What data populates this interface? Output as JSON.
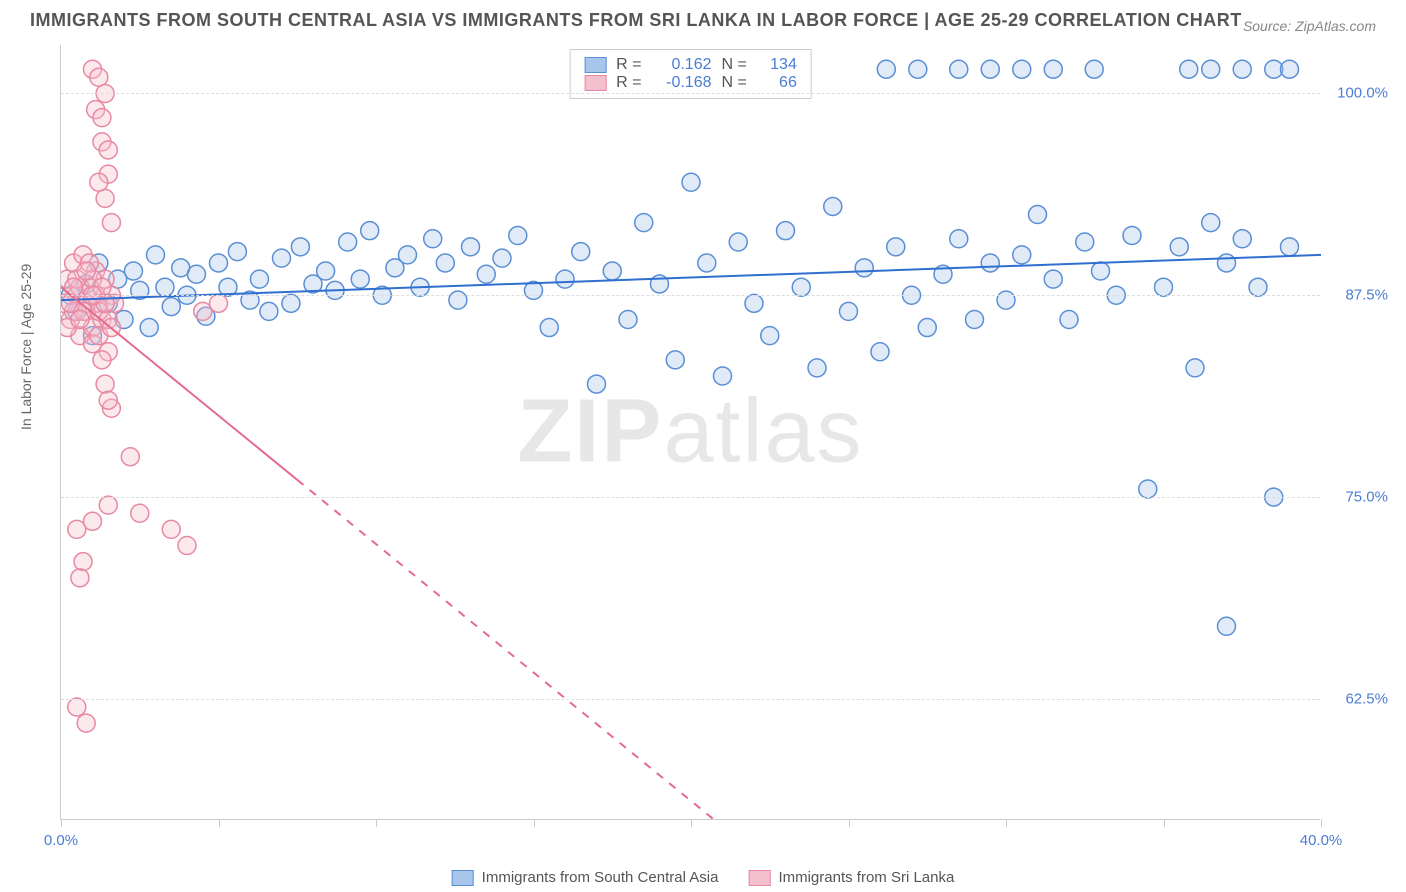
{
  "title": "IMMIGRANTS FROM SOUTH CENTRAL ASIA VS IMMIGRANTS FROM SRI LANKA IN LABOR FORCE | AGE 25-29 CORRELATION CHART",
  "source": "Source: ZipAtlas.com",
  "ylabel": "In Labor Force | Age 25-29",
  "watermark_bold": "ZIP",
  "watermark_light": "atlas",
  "chart": {
    "type": "scatter_correlation",
    "xlim": [
      0,
      40
    ],
    "ylim": [
      55,
      103
    ],
    "xtick_positions": [
      0,
      5,
      10,
      15,
      20,
      25,
      30,
      35,
      40
    ],
    "xtick_labels_shown": {
      "0": "0.0%",
      "40": "40.0%"
    },
    "ytick_positions": [
      62.5,
      75,
      87.5,
      100
    ],
    "ytick_labels": [
      "62.5%",
      "75.0%",
      "87.5%",
      "100.0%"
    ],
    "background_color": "#ffffff",
    "grid_color": "#dddddd",
    "marker_radius": 9,
    "marker_stroke_width": 1.5,
    "marker_fill_opacity": 0.35,
    "line_width": 2
  },
  "series": [
    {
      "name": "Immigrants from South Central Asia",
      "color_fill": "#a8c5ec",
      "color_stroke": "#5a8fd6",
      "line_color": "#2f6fd0",
      "r": "0.162",
      "n": "134",
      "trend_start": [
        0,
        87.2
      ],
      "trend_end": [
        40,
        90.0
      ],
      "trend_dashed_after_x": null,
      "points": [
        [
          0.3,
          87.5
        ],
        [
          0.5,
          86.5
        ],
        [
          0.8,
          88.2
        ],
        [
          1.0,
          85.0
        ],
        [
          1.2,
          89.5
        ],
        [
          1.5,
          87.0
        ],
        [
          1.8,
          88.5
        ],
        [
          2.0,
          86.0
        ],
        [
          2.3,
          89.0
        ],
        [
          2.5,
          87.8
        ],
        [
          2.8,
          85.5
        ],
        [
          3.0,
          90.0
        ],
        [
          3.3,
          88.0
        ],
        [
          3.5,
          86.8
        ],
        [
          3.8,
          89.2
        ],
        [
          4.0,
          87.5
        ],
        [
          4.3,
          88.8
        ],
        [
          4.6,
          86.2
        ],
        [
          5.0,
          89.5
        ],
        [
          5.3,
          88.0
        ],
        [
          5.6,
          90.2
        ],
        [
          6.0,
          87.2
        ],
        [
          6.3,
          88.5
        ],
        [
          6.6,
          86.5
        ],
        [
          7.0,
          89.8
        ],
        [
          7.3,
          87.0
        ],
        [
          7.6,
          90.5
        ],
        [
          8.0,
          88.2
        ],
        [
          8.4,
          89.0
        ],
        [
          8.7,
          87.8
        ],
        [
          9.1,
          90.8
        ],
        [
          9.5,
          88.5
        ],
        [
          9.8,
          91.5
        ],
        [
          10.2,
          87.5
        ],
        [
          10.6,
          89.2
        ],
        [
          11.0,
          90.0
        ],
        [
          11.4,
          88.0
        ],
        [
          11.8,
          91.0
        ],
        [
          12.2,
          89.5
        ],
        [
          12.6,
          87.2
        ],
        [
          13.0,
          90.5
        ],
        [
          13.5,
          88.8
        ],
        [
          14.0,
          89.8
        ],
        [
          14.5,
          91.2
        ],
        [
          15.0,
          87.8
        ],
        [
          15.5,
          85.5
        ],
        [
          16.0,
          88.5
        ],
        [
          16.5,
          90.2
        ],
        [
          17.0,
          82.0
        ],
        [
          17.5,
          89.0
        ],
        [
          18.0,
          86.0
        ],
        [
          18.5,
          92.0
        ],
        [
          19.0,
          88.2
        ],
        [
          19.5,
          83.5
        ],
        [
          20.0,
          94.5
        ],
        [
          20.5,
          89.5
        ],
        [
          21.0,
          82.5
        ],
        [
          21.5,
          90.8
        ],
        [
          22.0,
          87.0
        ],
        [
          22.5,
          85.0
        ],
        [
          23.0,
          91.5
        ],
        [
          23.4,
          101.5
        ],
        [
          23.5,
          88.0
        ],
        [
          24.0,
          83.0
        ],
        [
          24.5,
          93.0
        ],
        [
          25.0,
          86.5
        ],
        [
          25.5,
          89.2
        ],
        [
          26.0,
          84.0
        ],
        [
          26.2,
          101.5
        ],
        [
          26.5,
          90.5
        ],
        [
          27.0,
          87.5
        ],
        [
          27.2,
          101.5
        ],
        [
          27.5,
          85.5
        ],
        [
          28.0,
          88.8
        ],
        [
          28.5,
          101.5
        ],
        [
          28.5,
          91.0
        ],
        [
          29.0,
          86.0
        ],
        [
          29.5,
          89.5
        ],
        [
          29.5,
          101.5
        ],
        [
          30.0,
          87.2
        ],
        [
          30.5,
          90.0
        ],
        [
          30.5,
          101.5
        ],
        [
          31.0,
          92.5
        ],
        [
          31.5,
          88.5
        ],
        [
          31.5,
          101.5
        ],
        [
          32.0,
          86.0
        ],
        [
          32.5,
          90.8
        ],
        [
          32.8,
          101.5
        ],
        [
          33.0,
          89.0
        ],
        [
          33.5,
          87.5
        ],
        [
          34.0,
          91.2
        ],
        [
          34.5,
          75.5
        ],
        [
          35.0,
          88.0
        ],
        [
          35.5,
          90.5
        ],
        [
          35.8,
          101.5
        ],
        [
          36.0,
          83.0
        ],
        [
          36.5,
          92.0
        ],
        [
          36.5,
          101.5
        ],
        [
          37.0,
          89.5
        ],
        [
          37.0,
          67.0
        ],
        [
          37.5,
          91.0
        ],
        [
          37.5,
          101.5
        ],
        [
          38.0,
          88.0
        ],
        [
          38.5,
          75.0
        ],
        [
          38.5,
          101.5
        ],
        [
          39.0,
          90.5
        ],
        [
          39.0,
          101.5
        ]
      ]
    },
    {
      "name": "Immigrants from Sri Lanka",
      "color_fill": "#f5c0ce",
      "color_stroke": "#e889a3",
      "line_color": "#e56b8c",
      "r": "-0.168",
      "n": "66",
      "trend_start": [
        0,
        88.0
      ],
      "trend_end": [
        22,
        53.0
      ],
      "trend_dashed_after_x": 7.5,
      "points": [
        [
          0.1,
          87.0
        ],
        [
          0.2,
          88.5
        ],
        [
          0.3,
          86.0
        ],
        [
          0.4,
          89.5
        ],
        [
          0.5,
          87.5
        ],
        [
          0.6,
          85.0
        ],
        [
          0.7,
          90.0
        ],
        [
          0.8,
          86.5
        ],
        [
          0.9,
          88.0
        ],
        [
          1.0,
          85.5
        ],
        [
          1.1,
          89.0
        ],
        [
          1.2,
          87.0
        ],
        [
          1.3,
          86.0
        ],
        [
          1.4,
          88.5
        ],
        [
          1.5,
          84.0
        ],
        [
          1.6,
          87.5
        ],
        [
          1.0,
          101.5
        ],
        [
          1.2,
          101.0
        ],
        [
          1.4,
          100.0
        ],
        [
          1.1,
          99.0
        ],
        [
          1.3,
          97.0
        ],
        [
          1.5,
          95.0
        ],
        [
          1.4,
          93.5
        ],
        [
          1.6,
          92.0
        ],
        [
          1.2,
          94.5
        ],
        [
          1.5,
          96.5
        ],
        [
          1.3,
          98.5
        ],
        [
          0.4,
          86.5
        ],
        [
          0.6,
          88.0
        ],
        [
          0.8,
          87.0
        ],
        [
          1.0,
          88.5
        ],
        [
          1.2,
          86.5
        ],
        [
          1.4,
          82.0
        ],
        [
          1.6,
          80.5
        ],
        [
          1.3,
          83.5
        ],
        [
          1.5,
          81.0
        ],
        [
          0.5,
          73.0
        ],
        [
          0.7,
          71.0
        ],
        [
          0.6,
          70.0
        ],
        [
          1.0,
          73.5
        ],
        [
          1.5,
          74.5
        ],
        [
          2.5,
          74.0
        ],
        [
          2.2,
          77.5
        ],
        [
          3.5,
          73.0
        ],
        [
          4.0,
          72.0
        ],
        [
          4.5,
          86.5
        ],
        [
          5.0,
          87.0
        ],
        [
          0.5,
          62.0
        ],
        [
          0.8,
          61.0
        ],
        [
          0.2,
          85.5
        ],
        [
          0.3,
          87.0
        ],
        [
          0.5,
          88.5
        ],
        [
          0.7,
          86.5
        ],
        [
          0.9,
          89.5
        ],
        [
          1.1,
          87.5
        ],
        [
          1.3,
          88.0
        ],
        [
          1.5,
          86.0
        ],
        [
          1.7,
          87.0
        ],
        [
          1.0,
          84.5
        ],
        [
          1.2,
          85.0
        ],
        [
          1.4,
          87.0
        ],
        [
          1.6,
          85.5
        ],
        [
          0.4,
          88.0
        ],
        [
          0.6,
          86.0
        ],
        [
          0.8,
          89.0
        ],
        [
          1.0,
          87.5
        ]
      ]
    }
  ],
  "bottom_legend": [
    {
      "label": "Immigrants from South Central Asia",
      "fill": "#a8c5ec",
      "stroke": "#5a8fd6"
    },
    {
      "label": "Immigrants from Sri Lanka",
      "fill": "#f5c0ce",
      "stroke": "#e889a3"
    }
  ]
}
